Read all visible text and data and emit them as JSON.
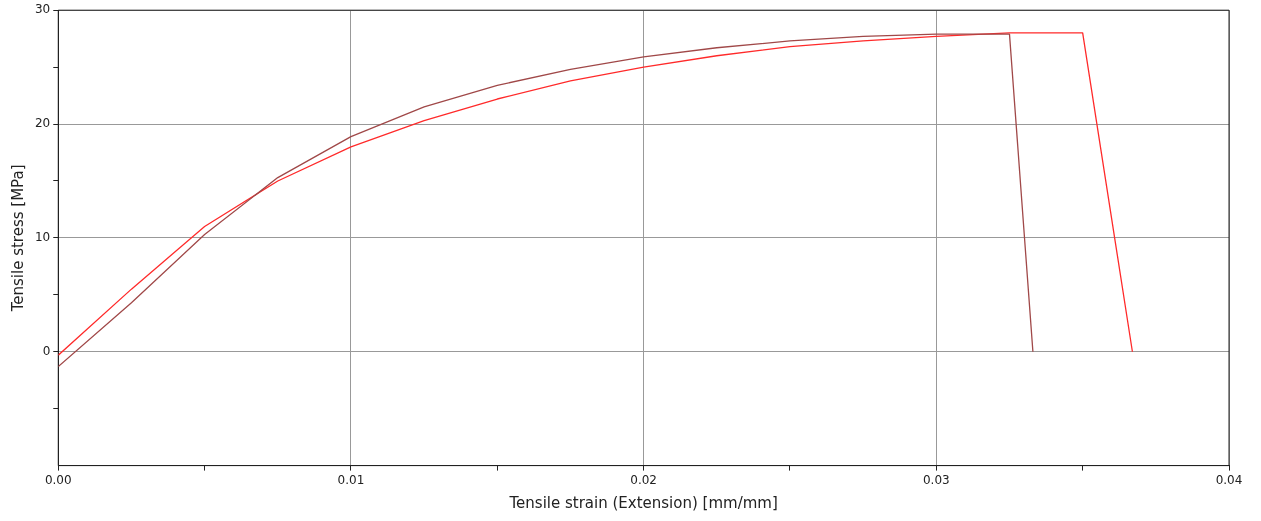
{
  "chart_data": {
    "type": "line",
    "xlabel": "Tensile strain (Extension) [mm/mm]",
    "ylabel": "Tensile stress [MPa]",
    "xlim": [
      0,
      0.04
    ],
    "ylim": [
      -10,
      30
    ],
    "xticks": [
      {
        "value": 0,
        "label": "0.00"
      },
      {
        "value": 0.005,
        "label": null
      },
      {
        "value": 0.01,
        "label": "0.01"
      },
      {
        "value": 0.015,
        "label": null
      },
      {
        "value": 0.02,
        "label": "0.02"
      },
      {
        "value": 0.025,
        "label": null
      },
      {
        "value": 0.03,
        "label": "0.03"
      },
      {
        "value": 0.035,
        "label": null
      },
      {
        "value": 0.04,
        "label": "0.04"
      }
    ],
    "yticks": [
      {
        "value": -5,
        "label": null
      },
      0,
      {
        "value": 5,
        "label": null
      },
      10,
      {
        "value": 15,
        "label": null
      },
      20,
      {
        "value": 25,
        "label": null
      },
      30
    ],
    "grid": true,
    "legend": false,
    "marker": "none",
    "line_style": "solid",
    "series": [
      {
        "color": "#a04848",
        "x": [
          0,
          0.0025,
          0.005,
          0.0075,
          0.01,
          0.0125,
          0.015,
          0.0175,
          0.02,
          0.0225,
          0.025,
          0.0275,
          0.03,
          0.0325,
          0.0333
        ],
        "values": [
          -1.3,
          4.3,
          10.3,
          15.3,
          18.9,
          21.5,
          23.4,
          24.8,
          25.9,
          26.7,
          27.3,
          27.7,
          27.9,
          27.9,
          0
        ]
      },
      {
        "color": "#ff2a2a",
        "x": [
          0,
          0.0025,
          0.005,
          0.0075,
          0.01,
          0.0125,
          0.015,
          0.0175,
          0.02,
          0.0225,
          0.025,
          0.0275,
          0.03,
          0.0325,
          0.035,
          0.0367
        ],
        "values": [
          -0.3,
          5.5,
          11,
          15,
          18,
          20.3,
          22.2,
          23.8,
          25,
          26,
          26.8,
          27.3,
          27.7,
          28,
          28,
          0
        ]
      }
    ]
  }
}
